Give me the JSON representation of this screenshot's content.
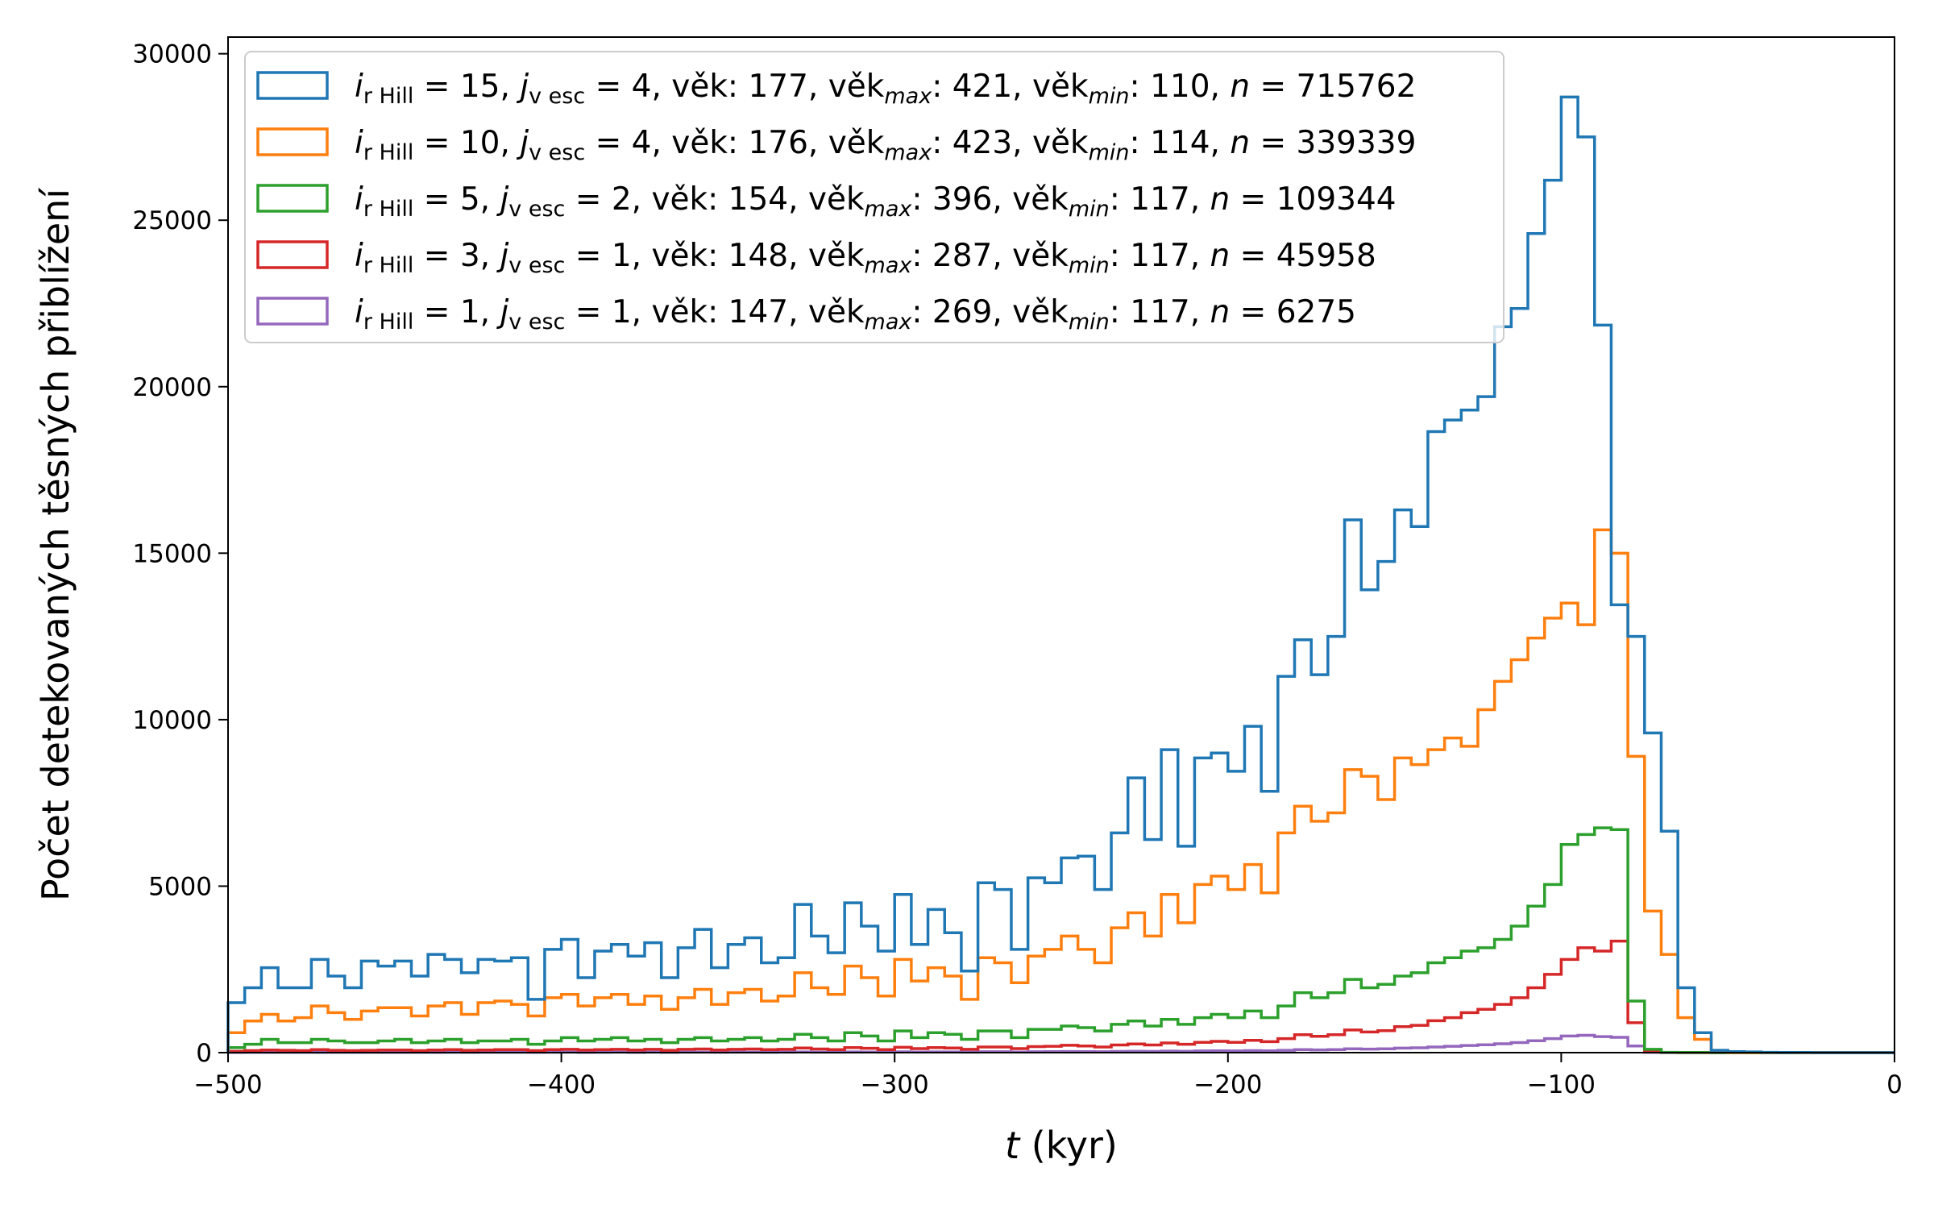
{
  "chart_data": {
    "type": "histogram-step",
    "xlabel_var": "t",
    "xlabel_unit": " (kyr)",
    "ylabel": "Počet detekovaných těsných přiblížení",
    "xlim": [
      -500,
      0
    ],
    "ylim": [
      0,
      30500
    ],
    "xticks": [
      -500,
      -400,
      -300,
      -200,
      -100,
      0
    ],
    "xtick_labels": [
      "−500",
      "−400",
      "−300",
      "−200",
      "−100",
      "0"
    ],
    "yticks": [
      0,
      5000,
      10000,
      15000,
      20000,
      25000,
      30000
    ],
    "ytick_labels": [
      "0",
      "5000",
      "10000",
      "15000",
      "20000",
      "25000",
      "30000"
    ],
    "grid": false,
    "legend_position": "top-left",
    "bin_start": -500,
    "bin_width": 5,
    "series": [
      {
        "color": "#1f77b4",
        "legend": {
          "i_sub": "r Hill",
          "i_val": " = 15, ",
          "j_sub": "v esc",
          "j_val": " = 4, věk: 177, věk",
          "max_val": ": 421, věk",
          "min_val": ": 110, ",
          "n_val": " = 715762"
        },
        "values": [
          1500,
          1950,
          2550,
          1950,
          1950,
          2800,
          2300,
          1950,
          2750,
          2600,
          2750,
          2300,
          2950,
          2800,
          2400,
          2800,
          2750,
          2850,
          1600,
          3100,
          3400,
          2250,
          3050,
          3250,
          2900,
          3300,
          2250,
          3150,
          3700,
          2550,
          3250,
          3450,
          2700,
          2850,
          4450,
          3500,
          3000,
          4500,
          3800,
          3050,
          4750,
          3250,
          4300,
          3600,
          2450,
          5100,
          4900,
          3100,
          5250,
          5100,
          5850,
          5900,
          4900,
          6600,
          8250,
          6400,
          9100,
          6200,
          8850,
          9000,
          8450,
          9800,
          7850,
          11300,
          12400,
          11350,
          12500,
          16000,
          13900,
          14750,
          16300,
          15800,
          18650,
          19000,
          19300,
          19700,
          21800,
          22350,
          24600,
          26200,
          28700,
          27500,
          21850,
          13450,
          12500,
          9600,
          6650,
          1950,
          600,
          70,
          30,
          20,
          10,
          5,
          5,
          0,
          0,
          0,
          0,
          0
        ]
      },
      {
        "color": "#ff7f0e",
        "legend": {
          "i_sub": "r Hill",
          "i_val": " = 10, ",
          "j_sub": "v esc",
          "j_val": " = 4, věk: 176, věk",
          "max_val": ": 423, věk",
          "min_val": ": 114, ",
          "n_val": " = 339339"
        },
        "values": [
          600,
          950,
          1150,
          950,
          1050,
          1400,
          1200,
          1000,
          1250,
          1350,
          1350,
          1100,
          1400,
          1500,
          1150,
          1500,
          1550,
          1450,
          1100,
          1650,
          1750,
          1400,
          1650,
          1750,
          1450,
          1700,
          1300,
          1650,
          1900,
          1450,
          1800,
          1900,
          1550,
          1700,
          2400,
          1950,
          1750,
          2600,
          2250,
          1700,
          2800,
          2150,
          2550,
          2300,
          1600,
          2850,
          2700,
          2100,
          2900,
          3100,
          3500,
          3100,
          2700,
          3750,
          4200,
          3500,
          4750,
          3900,
          5050,
          5300,
          4900,
          5650,
          4800,
          6600,
          7400,
          6950,
          7200,
          8500,
          8300,
          7600,
          8850,
          8650,
          9100,
          9450,
          9200,
          10300,
          11150,
          11800,
          12450,
          13050,
          13500,
          12850,
          15700,
          15000,
          8900,
          4250,
          2950,
          1050,
          400,
          30,
          10,
          10,
          5,
          5,
          0,
          0,
          0,
          0,
          0,
          0
        ]
      },
      {
        "color": "#2ca02c",
        "legend": {
          "i_sub": "r Hill",
          "i_val": " =  5, ",
          "j_sub": "v esc",
          "j_val": " = 2, věk: 154, věk",
          "max_val": ": 396, věk",
          "min_val": ": 117, ",
          "n_val": " = 109344"
        },
        "values": [
          150,
          250,
          400,
          300,
          300,
          400,
          350,
          300,
          300,
          350,
          400,
          300,
          350,
          400,
          300,
          350,
          350,
          400,
          250,
          350,
          450,
          350,
          400,
          450,
          350,
          400,
          300,
          400,
          450,
          350,
          400,
          450,
          350,
          400,
          550,
          450,
          350,
          600,
          500,
          350,
          650,
          450,
          600,
          550,
          400,
          650,
          650,
          450,
          700,
          700,
          800,
          750,
          650,
          850,
          950,
          800,
          1000,
          850,
          1050,
          1150,
          1050,
          1250,
          1050,
          1400,
          1800,
          1650,
          1800,
          2200,
          1950,
          2050,
          2300,
          2400,
          2700,
          2850,
          3050,
          3150,
          3400,
          3800,
          4400,
          5050,
          6250,
          6550,
          6750,
          6700,
          1550,
          100,
          10,
          5,
          5,
          0,
          0,
          0,
          0,
          0,
          0,
          0,
          0,
          0,
          0,
          0
        ]
      },
      {
        "color": "#d62728",
        "legend": {
          "i_sub": "r Hill",
          "i_val": " =  3, ",
          "j_sub": "v esc",
          "j_val": " = 1, věk: 148, věk",
          "max_val": ": 287, věk",
          "min_val": ": 117, ",
          "n_val": " = 45958"
        },
        "values": [
          40,
          60,
          80,
          70,
          60,
          90,
          70,
          60,
          70,
          80,
          80,
          60,
          80,
          90,
          70,
          80,
          90,
          90,
          60,
          90,
          100,
          80,
          90,
          100,
          80,
          100,
          70,
          100,
          110,
          80,
          100,
          110,
          90,
          100,
          140,
          110,
          90,
          150,
          130,
          90,
          160,
          120,
          150,
          140,
          100,
          170,
          170,
          120,
          180,
          190,
          220,
          200,
          170,
          230,
          260,
          230,
          290,
          250,
          310,
          340,
          310,
          370,
          330,
          420,
          540,
          490,
          540,
          680,
          620,
          660,
          780,
          820,
          960,
          1050,
          1200,
          1300,
          1450,
          1650,
          1950,
          2350,
          2800,
          3150,
          3050,
          3350,
          900,
          50,
          5,
          0,
          0,
          0,
          0,
          0,
          0,
          0,
          0,
          0,
          0,
          0,
          0,
          0
        ]
      },
      {
        "color": "#9467bd",
        "legend": {
          "i_sub": "r Hill",
          "i_val": " =  1, ",
          "j_sub": "v esc",
          "j_val": " = 1, věk: 147, věk",
          "max_val": ": 269, věk",
          "min_val": ": 117, ",
          "n_val": " = 6275"
        },
        "values": [
          5,
          8,
          10,
          8,
          8,
          10,
          10,
          8,
          10,
          10,
          10,
          8,
          10,
          12,
          10,
          12,
          12,
          12,
          8,
          12,
          14,
          10,
          12,
          14,
          10,
          14,
          10,
          14,
          16,
          12,
          14,
          16,
          12,
          14,
          20,
          16,
          14,
          22,
          18,
          14,
          24,
          18,
          22,
          20,
          16,
          26,
          26,
          18,
          28,
          30,
          34,
          30,
          26,
          36,
          40,
          36,
          46,
          40,
          50,
          56,
          50,
          60,
          56,
          70,
          90,
          82,
          92,
          116,
          106,
          114,
          136,
          146,
          170,
          190,
          216,
          236,
          266,
          304,
          356,
          420,
          500,
          520,
          480,
          460,
          200,
          10,
          0,
          0,
          0,
          0,
          0,
          0,
          0,
          0,
          0,
          0,
          0,
          0,
          0,
          0
        ]
      }
    ]
  }
}
